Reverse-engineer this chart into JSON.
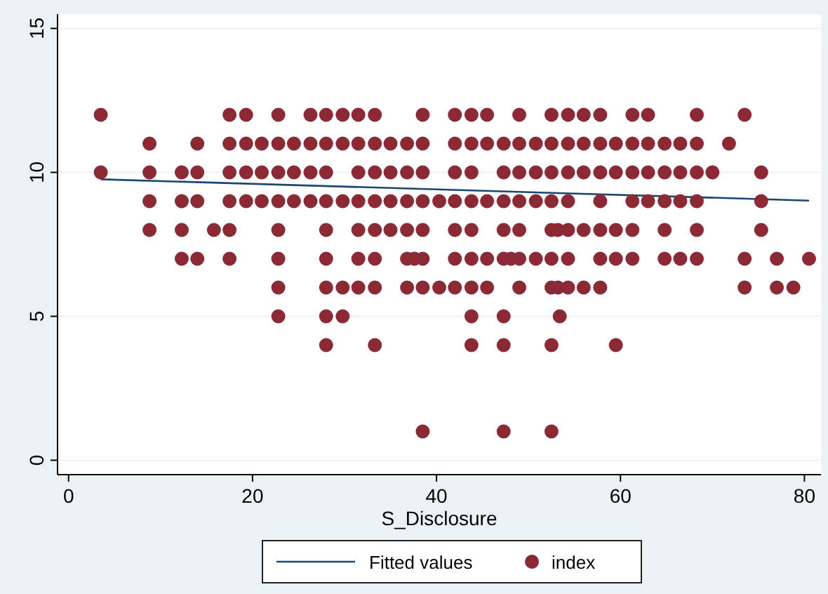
{
  "chart_data": {
    "type": "scatter",
    "xlabel": "S_Disclosure",
    "xlim": [
      -1.2,
      81.8
    ],
    "ylim": [
      -0.5,
      15.5
    ],
    "xticks": [
      0,
      20,
      40,
      60,
      80
    ],
    "yticks": [
      0,
      5,
      10,
      15
    ],
    "grid": "y",
    "legend": "bottom",
    "series": [
      {
        "type": "line",
        "name": "Fitted values",
        "color": "#1a476f",
        "x": [
          3.5,
          80.5
        ],
        "values": [
          9.76,
          9.02
        ]
      },
      {
        "name": "index",
        "color": "#8b2a35",
        "marker": "circle",
        "x": [
          3.5,
          17.5,
          19.3,
          22.8,
          26.3,
          28,
          29.8,
          31.5,
          33.3,
          38.5,
          42,
          43.8,
          45.5,
          49,
          52.5,
          54.3,
          56,
          57.8,
          61.3,
          63,
          68.3,
          73.5,
          8.8,
          14,
          17.5,
          19.3,
          21,
          22.8,
          24.5,
          26.3,
          28,
          29.8,
          31.5,
          33.3,
          35,
          36.8,
          38.5,
          42,
          43.8,
          45.5,
          47.3,
          49,
          50.8,
          52.5,
          54.3,
          56,
          57.8,
          59.5,
          61.3,
          63,
          64.8,
          66.5,
          68.3,
          71.8,
          3.5,
          8.8,
          12.3,
          14,
          17.5,
          19.3,
          21,
          22.8,
          24.5,
          26.3,
          28,
          31.5,
          33.3,
          35,
          36.8,
          38.5,
          42,
          43.8,
          47.3,
          49,
          50.8,
          52.5,
          54.3,
          56,
          57.8,
          59.5,
          61.3,
          63,
          64.8,
          66.5,
          68.3,
          70,
          75.3,
          8.8,
          12.3,
          14,
          17.5,
          19.3,
          21,
          22.8,
          24.5,
          26.3,
          28,
          29.8,
          31.5,
          33.3,
          35,
          36.8,
          38.5,
          40.3,
          42,
          43.8,
          45.5,
          47.3,
          49,
          50.8,
          52.5,
          54.3,
          57.8,
          61.3,
          63,
          64.8,
          66.5,
          68.3,
          75.3,
          8.8,
          12.3,
          15.8,
          17.5,
          22.8,
          28,
          31.5,
          33.3,
          35,
          36.8,
          38.5,
          42,
          43.8,
          47.3,
          49,
          52.5,
          53.2,
          54.3,
          56,
          57.8,
          59.5,
          61.3,
          64.8,
          68.3,
          75.3,
          12.3,
          14,
          17.5,
          22.8,
          28,
          31.5,
          33.3,
          36.8,
          37.6,
          38.5,
          42,
          43.8,
          45.5,
          47.3,
          48.1,
          49,
          50.8,
          52.5,
          54.3,
          57.8,
          59.5,
          61.3,
          64.8,
          66.5,
          68.3,
          73.5,
          77,
          80.5,
          22.8,
          28,
          29.8,
          31.5,
          33.3,
          36.8,
          38.5,
          40.3,
          42,
          43.8,
          45.5,
          49,
          52.5,
          53.2,
          54.3,
          56,
          57.8,
          73.5,
          77,
          78.8,
          22.8,
          28,
          29.8,
          43.8,
          47.3,
          53.4,
          28,
          33.3,
          43.8,
          47.3,
          52.5,
          59.5,
          38.5,
          47.3,
          52.5
        ],
        "values": [
          12,
          12,
          12,
          12,
          12,
          12,
          12,
          12,
          12,
          12,
          12,
          12,
          12,
          12,
          12,
          12,
          12,
          12,
          12,
          12,
          12,
          12,
          11,
          11,
          11,
          11,
          11,
          11,
          11,
          11,
          11,
          11,
          11,
          11,
          11,
          11,
          11,
          11,
          11,
          11,
          11,
          11,
          11,
          11,
          11,
          11,
          11,
          11,
          11,
          11,
          11,
          11,
          11,
          11,
          10,
          10,
          10,
          10,
          10,
          10,
          10,
          10,
          10,
          10,
          10,
          10,
          10,
          10,
          10,
          10,
          10,
          10,
          10,
          10,
          10,
          10,
          10,
          10,
          10,
          10,
          10,
          10,
          10,
          10,
          10,
          10,
          10,
          9,
          9,
          9,
          9,
          9,
          9,
          9,
          9,
          9,
          9,
          9,
          9,
          9,
          9,
          9,
          9,
          9,
          9,
          9,
          9,
          9,
          9,
          9,
          9,
          9,
          9,
          9,
          9,
          9,
          9,
          9,
          9,
          8,
          8,
          8,
          8,
          8,
          8,
          8,
          8,
          8,
          8,
          8,
          8,
          8,
          8,
          8,
          8,
          8,
          8,
          8,
          8,
          8,
          8,
          8,
          8,
          8,
          7,
          7,
          7,
          7,
          7,
          7,
          7,
          7,
          7,
          7,
          7,
          7,
          7,
          7,
          7,
          7,
          7,
          7,
          7,
          7,
          7,
          7,
          7,
          7,
          7,
          7,
          7,
          7,
          6,
          6,
          6,
          6,
          6,
          6,
          6,
          6,
          6,
          6,
          6,
          6,
          6,
          6,
          6,
          6,
          6,
          6,
          6,
          6,
          5,
          5,
          5,
          5,
          5,
          5,
          4,
          4,
          4,
          4,
          4,
          4,
          1,
          1,
          1
        ]
      }
    ]
  }
}
